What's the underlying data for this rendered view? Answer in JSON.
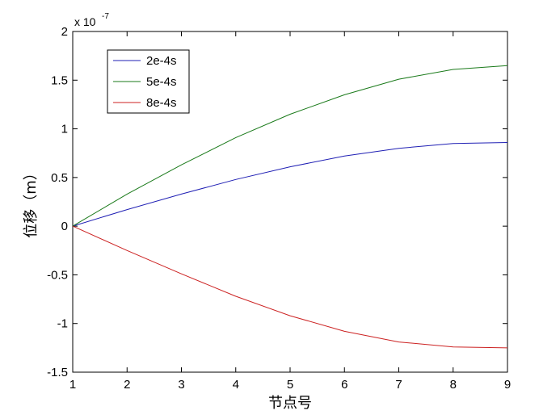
{
  "chart_data": {
    "type": "line",
    "title": "",
    "xlabel": "节点号",
    "ylabel": "位移（m）",
    "xlim": [
      1,
      9
    ],
    "ylim": [
      -1.5,
      2
    ],
    "x_ticks": [
      "1",
      "2",
      "3",
      "4",
      "5",
      "6",
      "7",
      "8",
      "9"
    ],
    "y_ticks": [
      "2",
      "1.5",
      "1",
      "0.5",
      "0",
      "-0.5",
      "-1",
      "-1.5"
    ],
    "y_exponent": {
      "base": "x 10",
      "power": "-7"
    },
    "grid": false,
    "legend_position": "top-left",
    "x": [
      1,
      2,
      3,
      4,
      5,
      6,
      7,
      8,
      9
    ],
    "series": [
      {
        "name": "2e-4s",
        "color": "#1f1fb4",
        "values": [
          0,
          0.17,
          0.33,
          0.48,
          0.61,
          0.72,
          0.8,
          0.85,
          0.86
        ]
      },
      {
        "name": "5e-4s",
        "color": "#1a7a1a",
        "values": [
          0,
          0.33,
          0.63,
          0.91,
          1.15,
          1.35,
          1.51,
          1.61,
          1.65
        ]
      },
      {
        "name": "8e-4s",
        "color": "#cc2222",
        "values": [
          0,
          -0.25,
          -0.49,
          -0.72,
          -0.92,
          -1.08,
          -1.19,
          -1.24,
          -1.25
        ]
      }
    ]
  }
}
